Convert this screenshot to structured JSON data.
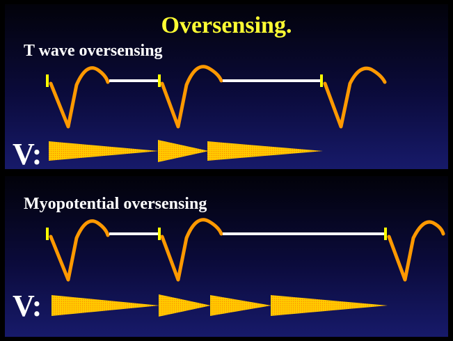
{
  "title": "Oversensing.",
  "panels": [
    {
      "label": "T wave oversensing",
      "channel": "V:"
    },
    {
      "label": "Myopotential oversensing",
      "channel": "V:"
    }
  ],
  "colors": {
    "title": "#ffff33",
    "text": "#ffffff",
    "waveform": "#ff9900",
    "sense_marker": "#ffff00",
    "interval_line": "#ffffff",
    "timer_fill": "#ffcc00",
    "timer_dots": "#ff8800",
    "panel_top": "#0b0b3c",
    "panel_bottom": "#171a6a"
  }
}
